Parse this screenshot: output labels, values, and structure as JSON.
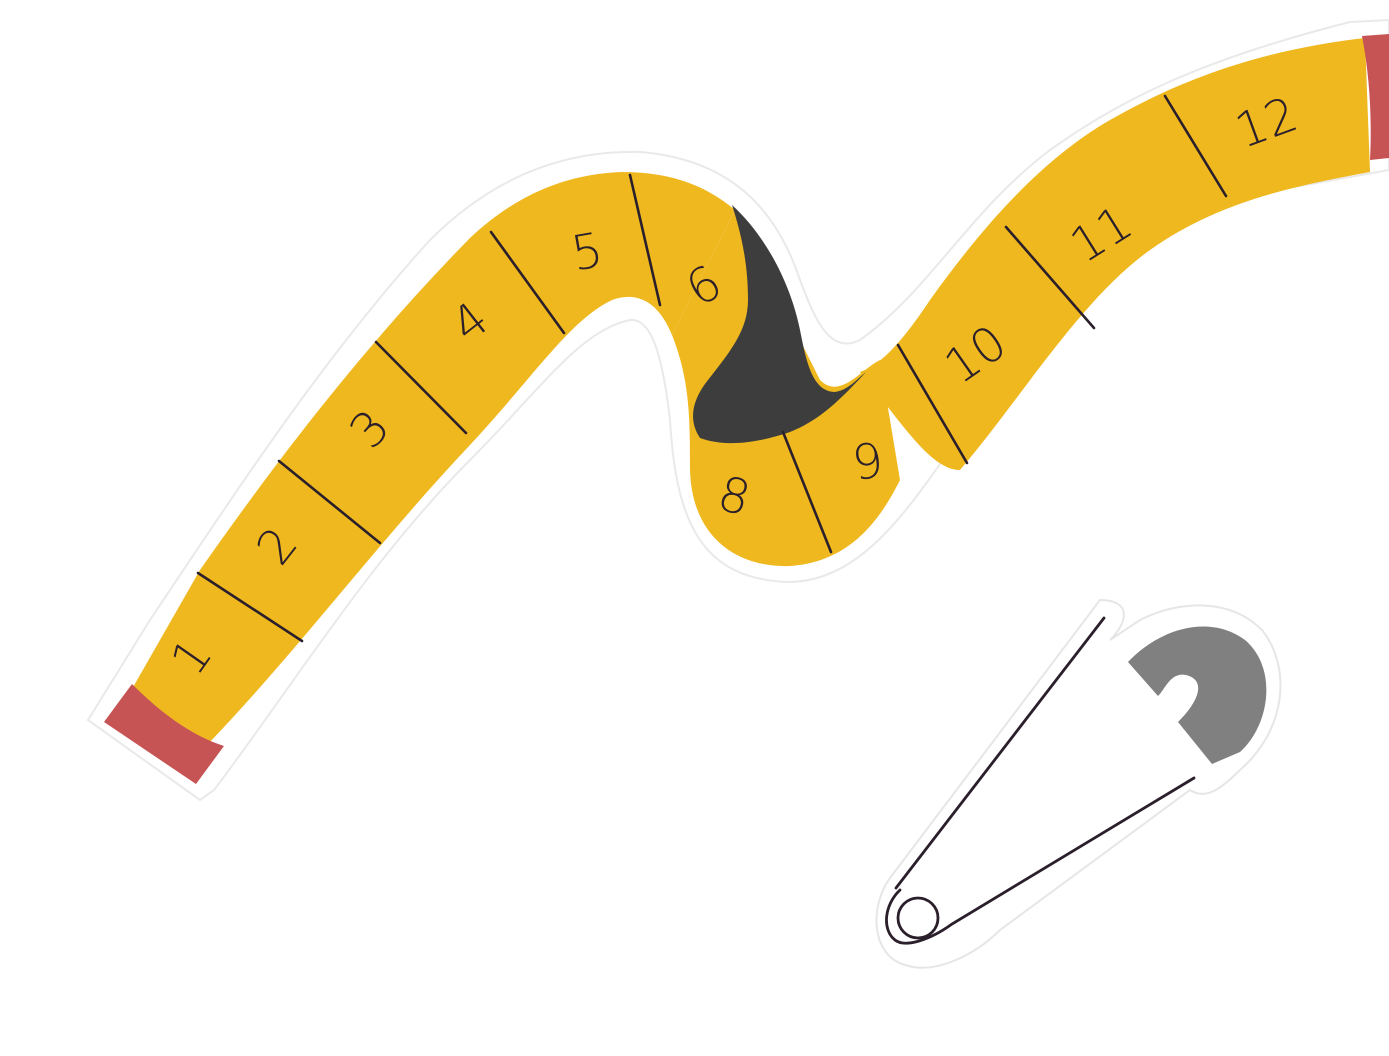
{
  "illustration": {
    "tape_numbers": [
      "1",
      "2",
      "3",
      "4",
      "5",
      "6",
      "8",
      "9",
      "10",
      "11",
      "12"
    ],
    "colors": {
      "tape": "#EFB81E",
      "tape_underside": "#3D3D3D",
      "tape_end": "#C75454",
      "outline": "#ffffff",
      "line": "#2a1f2a",
      "pin_head": "#808080"
    },
    "icons": [
      "measuring-tape-icon",
      "safety-pin-icon"
    ]
  }
}
